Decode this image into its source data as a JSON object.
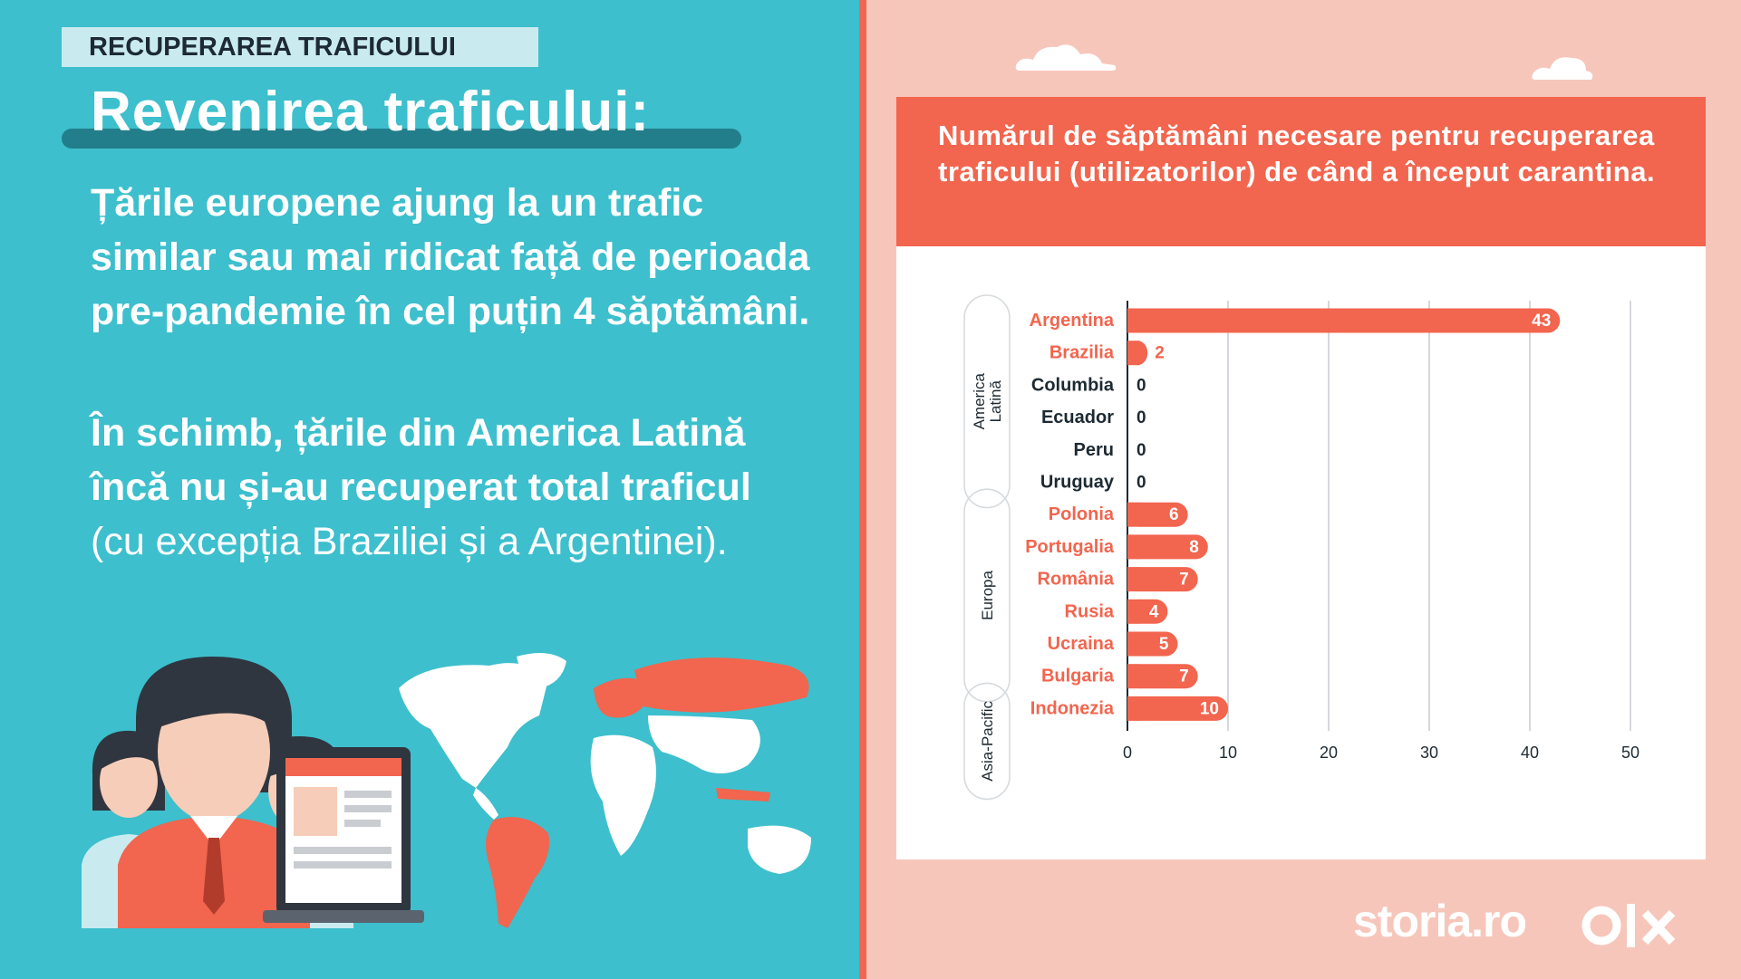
{
  "left": {
    "tag": "RECUPERAREA TRAFICULUI",
    "title": "Revenirea traficului:",
    "paragraph1": "Țările europene ajung la un trafic similar sau mai ridicat față de perioada pre-pandemie în cel puțin 4 săptămâni.",
    "paragraph2_bold": "În schimb, țările din America Latină încă nu și-au recuperat total traficul",
    "paragraph2_normal": " (cu excepția Braziliei și a Argentinei)."
  },
  "chart_data": {
    "type": "bar",
    "orientation": "horizontal",
    "title": "Numărul de săptămâni necesare pentru recuperarea traficului (utilizatorilor) de când a început carantina.",
    "categories": [
      "Argentina",
      "Brazilia",
      "Columbia",
      "Ecuador",
      "Peru",
      "Uruguay",
      "Polonia",
      "Portugalia",
      "România",
      "Rusia",
      "Ucraina",
      "Bulgaria",
      "Indonezia"
    ],
    "values": [
      43,
      2,
      0,
      0,
      0,
      0,
      6,
      8,
      7,
      4,
      5,
      7,
      10
    ],
    "highlighted": [
      true,
      true,
      false,
      false,
      false,
      false,
      true,
      true,
      true,
      true,
      true,
      true,
      true
    ],
    "groups": [
      {
        "name": "America Latină",
        "categories": [
          "Argentina",
          "Brazilia",
          "Columbia",
          "Ecuador",
          "Peru",
          "Uruguay"
        ]
      },
      {
        "name": "Europa",
        "categories": [
          "Polonia",
          "Portugalia",
          "România",
          "Rusia",
          "Ucraina",
          "Bulgaria"
        ]
      },
      {
        "name": "Asia-Pacific",
        "categories": [
          "Indonezia"
        ]
      }
    ],
    "xlim": [
      0,
      50
    ],
    "xticks": [
      0,
      10,
      20,
      30,
      40,
      50
    ],
    "grid": true,
    "bar_color": "#f2654e",
    "zero_label_color": "#1d2a33"
  },
  "brand": {
    "storia": "storia.ro",
    "olx": "olx"
  },
  "colors": {
    "teal": "#3dbfcd",
    "salmon": "#f2654e",
    "pink": "#f7c6bb",
    "dark": "#1d2a33"
  }
}
